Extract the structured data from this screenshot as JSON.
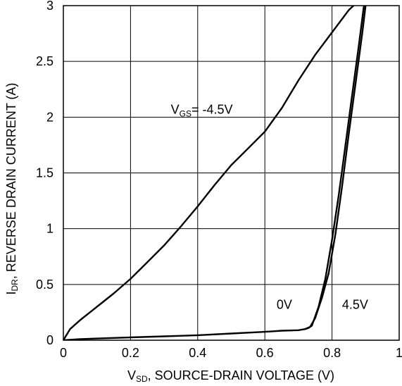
{
  "chart_data": {
    "type": "line",
    "xlabel": {
      "main": "V",
      "sub": "SD",
      "rest": ", SOURCE-DRAIN VOLTAGE (V)"
    },
    "ylabel": {
      "main": "I",
      "sub": "DR",
      "rest": ", REVERSE DRAIN CURRENT (A)"
    },
    "xlim": [
      0,
      1
    ],
    "ylim": [
      0,
      3
    ],
    "grid": true,
    "x_ticks": [
      {
        "v": 0,
        "label": "0"
      },
      {
        "v": 0.2,
        "label": "0.2"
      },
      {
        "v": 0.4,
        "label": "0.4"
      },
      {
        "v": 0.6,
        "label": "0.6"
      },
      {
        "v": 0.8,
        "label": "0.8"
      },
      {
        "v": 1,
        "label": "1"
      }
    ],
    "y_ticks": [
      {
        "v": 0,
        "label": "0"
      },
      {
        "v": 0.5,
        "label": "0.5"
      },
      {
        "v": 1,
        "label": "1"
      },
      {
        "v": 1.5,
        "label": "1.5"
      },
      {
        "v": 2,
        "label": "2"
      },
      {
        "v": 2.5,
        "label": "2.5"
      },
      {
        "v": 3,
        "label": "3"
      }
    ],
    "series": [
      {
        "name": "V_GS = -4.5V",
        "x": [
          0,
          0.02,
          0.05,
          0.1,
          0.15,
          0.2,
          0.25,
          0.3,
          0.35,
          0.4,
          0.45,
          0.5,
          0.55,
          0.6,
          0.65,
          0.7,
          0.75,
          0.8,
          0.85,
          0.9
        ],
        "y": [
          0,
          0.1,
          0.18,
          0.3,
          0.42,
          0.55,
          0.7,
          0.85,
          1.02,
          1.2,
          1.39,
          1.57,
          1.72,
          1.87,
          2.08,
          2.33,
          2.56,
          2.76,
          2.96,
          3.1
        ]
      },
      {
        "name": "0V",
        "x": [
          0,
          0.05,
          0.1,
          0.2,
          0.3,
          0.4,
          0.5,
          0.6,
          0.65,
          0.7,
          0.72,
          0.73,
          0.74,
          0.76,
          0.78,
          0.8,
          0.82,
          0.84,
          0.86,
          0.88,
          0.895,
          0.905
        ],
        "y": [
          0,
          0.01,
          0.015,
          0.025,
          0.035,
          0.045,
          0.06,
          0.075,
          0.085,
          0.09,
          0.1,
          0.11,
          0.13,
          0.3,
          0.55,
          0.9,
          1.3,
          1.75,
          2.2,
          2.65,
          3.0,
          3.1
        ]
      },
      {
        "name": "4.5V",
        "x": [
          0.72,
          0.735,
          0.75,
          0.77,
          0.79,
          0.81,
          0.83,
          0.85,
          0.87,
          0.89,
          0.9,
          0.91
        ],
        "y": [
          0.1,
          0.12,
          0.2,
          0.38,
          0.6,
          0.95,
          1.38,
          1.85,
          2.3,
          2.75,
          3.0,
          3.1
        ]
      }
    ],
    "annotations": [
      {
        "parts": [
          {
            "t": "V",
            "sub": false
          },
          {
            "t": "GS",
            "sub": true
          },
          {
            "t": "= -4.5V",
            "sub": false
          }
        ],
        "x": 0.32,
        "y": 2.03
      },
      {
        "parts": [
          {
            "t": "0V",
            "sub": false
          }
        ],
        "x": 0.635,
        "y": 0.28
      },
      {
        "parts": [
          {
            "t": "4.5V",
            "sub": false
          }
        ],
        "x": 0.83,
        "y": 0.28
      }
    ]
  }
}
